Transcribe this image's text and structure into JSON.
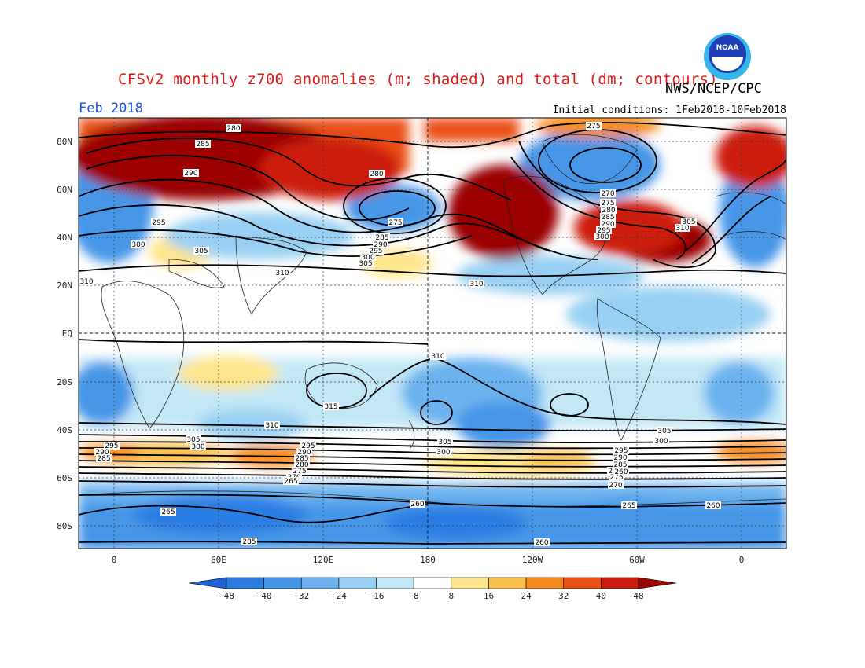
{
  "title": "CFSv2 monthly z700 anomalies (m; shaded) and total (dm; contours)",
  "agency": "NWS/NCEP/CPC",
  "logo_text": "NOAA",
  "month": "Feb 2018",
  "initial_conditions": "Initial conditions: 1Feb2018-10Feb2018",
  "lat_labels": [
    "80N",
    "60N",
    "40N",
    "20N",
    "EQ",
    "20S",
    "40S",
    "60S",
    "80S"
  ],
  "lon_labels": [
    "0",
    "60E",
    "120E",
    "180",
    "120W",
    "60W",
    "0"
  ],
  "colorbar": {
    "ticks": [
      "-48",
      "-40",
      "-32",
      "-24",
      "-16",
      "-8",
      "8",
      "16",
      "24",
      "32",
      "40",
      "48"
    ],
    "colors": [
      "#1e64d8",
      "#2b7de2",
      "#4696e8",
      "#6cb2ee",
      "#98d0f3",
      "#c2e8f7",
      "#ffffff",
      "#ffe58c",
      "#fcc04a",
      "#f78a1e",
      "#ea4f14",
      "#cc1a0c",
      "#9c0606"
    ]
  },
  "contour_labels": [
    {
      "text": "280"
    },
    {
      "text": "285"
    },
    {
      "text": "290"
    },
    {
      "text": "295"
    },
    {
      "text": "300"
    },
    {
      "text": "305"
    },
    {
      "text": "310"
    },
    {
      "text": "280"
    },
    {
      "text": "275"
    },
    {
      "text": "285"
    },
    {
      "text": "290"
    },
    {
      "text": "295"
    },
    {
      "text": "300"
    },
    {
      "text": "305"
    },
    {
      "text": "310"
    },
    {
      "text": "275"
    },
    {
      "text": "270"
    },
    {
      "text": "275"
    },
    {
      "text": "280"
    },
    {
      "text": "285"
    },
    {
      "text": "290"
    },
    {
      "text": "295"
    },
    {
      "text": "300"
    },
    {
      "text": "305"
    },
    {
      "text": "310"
    },
    {
      "text": "310"
    },
    {
      "text": "315"
    },
    {
      "text": "310"
    },
    {
      "text": "310"
    },
    {
      "text": "305"
    },
    {
      "text": "300"
    },
    {
      "text": "295"
    },
    {
      "text": "290"
    },
    {
      "text": "285"
    },
    {
      "text": "280"
    },
    {
      "text": "275"
    },
    {
      "text": "270"
    },
    {
      "text": "265"
    },
    {
      "text": "260"
    },
    {
      "text": "265"
    },
    {
      "text": "285"
    },
    {
      "text": "260"
    },
    {
      "text": "260"
    },
    {
      "text": "305"
    },
    {
      "text": "300"
    },
    {
      "text": "295"
    },
    {
      "text": "290"
    },
    {
      "text": "285"
    },
    {
      "text": "280"
    },
    {
      "text": "275"
    },
    {
      "text": "270"
    },
    {
      "text": "265"
    },
    {
      "text": "260"
    },
    {
      "text": "305"
    },
    {
      "text": "300"
    },
    {
      "text": "295"
    },
    {
      "text": "290"
    },
    {
      "text": "285"
    }
  ]
}
